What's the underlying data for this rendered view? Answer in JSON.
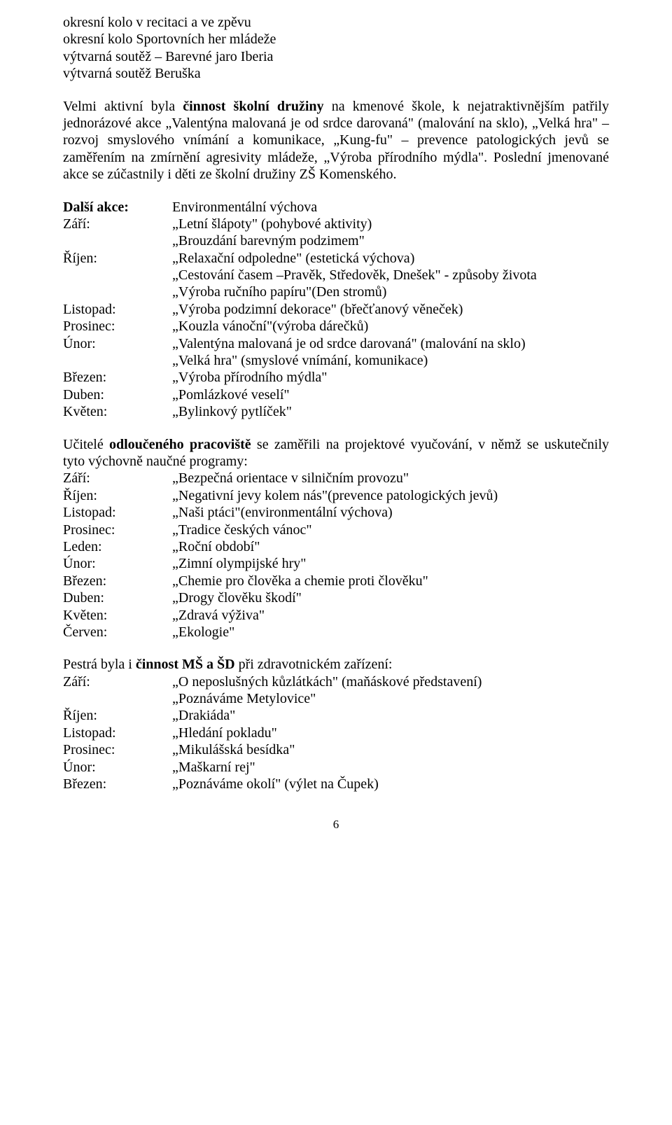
{
  "intro_lines": [
    "okresní kolo v recitaci a ve zpěvu",
    "okresní kolo Sportovních her mládeže",
    "výtvarná soutěž – Barevné jaro Iberia",
    "výtvarná soutěž Beruška"
  ],
  "paragraph1_prefix": "Velmi aktivní byla ",
  "paragraph1_bold": "činnost školní družiny",
  "paragraph1_rest": " na kmenové škole, k nejatraktivnějším patřily jednorázové akce „Valentýna malovaná je od srdce darovaná\" (malování na sklo), „Velká hra\" – rozvoj smyslového vnímání a komunikace, „Kung-fu\" – prevence patologických jevů se zaměřením na zmírnění agresivity mládeže, „Výroba přírodního mýdla\". Poslední jmenované akce se zúčastnily i děti ze školní družiny ZŠ Komenského.",
  "schedule1": [
    {
      "label_bold": "Další akce:",
      "lines": [
        "Environmentální výchova"
      ]
    },
    {
      "label": "Září:",
      "lines": [
        "„Letní šlápoty\" (pohybové aktivity)",
        "„Brouzdání barevným podzimem\""
      ]
    },
    {
      "label": "Říjen:",
      "lines": [
        "„Relaxační odpoledne\" (estetická výchova)",
        "„Cestování časem –Pravěk, Středověk, Dnešek\" - způsoby života",
        "„Výroba ručního papíru\"(Den stromů)"
      ]
    },
    {
      "label": "Listopad:",
      "lines": [
        "„Výroba podzimní dekorace\" (břečťanový věneček)"
      ]
    },
    {
      "label": "Prosinec:",
      "lines": [
        "„Kouzla vánoční\"(výroba dárečků)"
      ]
    },
    {
      "label": "Únor:",
      "lines": [
        "„Valentýna malovaná je od srdce darovaná\" (malování na sklo)",
        "„Velká hra\" (smyslové vnímání, komunikace)"
      ]
    },
    {
      "label": "Březen:",
      "lines": [
        "„Výroba přírodního mýdla\""
      ]
    },
    {
      "label": "Duben:",
      "lines": [
        "        „Pomlázkové veselí\""
      ]
    },
    {
      "label": "Květen:",
      "lines": [
        "„Bylinkový pytlíček\""
      ]
    }
  ],
  "paragraph2_prefix": "Učitelé ",
  "paragraph2_bold": "odloučeného pracoviště",
  "paragraph2_rest": " se  zaměřili  na  projektové  vyučování,  v němž  se uskutečnily tyto výchovně naučné programy:",
  "schedule2": [
    {
      "label": "Září:",
      "lines": [
        "„Bezpečná orientace v silničním provozu\""
      ]
    },
    {
      "label": "Říjen:",
      "lines": [
        "„Negativní jevy kolem nás\"(prevence patologických jevů)"
      ]
    },
    {
      "label": "Listopad:",
      "lines": [
        "„Naši ptáci\"(environmentální výchova)"
      ]
    },
    {
      "label": "Prosinec:",
      "lines": [
        "„Tradice českých vánoc\""
      ]
    },
    {
      "label": "Leden:",
      "lines": [
        "„Roční období\""
      ]
    },
    {
      "label": "Únor:",
      "lines": [
        "„Zimní olympijské hry\""
      ]
    },
    {
      "label": "Březen:",
      "lines": [
        "„Chemie pro člověka a chemie proti člověku\""
      ]
    },
    {
      "label": "Duben:",
      "lines": [
        "        „Drogy člověku škodí\""
      ]
    },
    {
      "label": "Květen:",
      "lines": [
        "„Zdravá výživa\""
      ]
    },
    {
      "label": "Červen:",
      "lines": [
        "„Ekologie\""
      ]
    }
  ],
  "paragraph3_prefix": "Pestrá byla i ",
  "paragraph3_bold": "činnost MŠ a ŠD",
  "paragraph3_rest": " při zdravotnickém zařízení:",
  "schedule3": [
    {
      "label": "Září:",
      "lines": [
        "„O neposlušných kůzlátkách\" (maňáskové představení)",
        "„Poznáváme Metylovice\""
      ]
    },
    {
      "label": "Říjen:",
      "lines": [
        "„Drakiáda\""
      ]
    },
    {
      "label": "Listopad:",
      "lines": [
        "„Hledání pokladu\""
      ]
    },
    {
      "label": "Prosinec:",
      "lines": [
        "„Mikulášská besídka\""
      ]
    },
    {
      "label": "Únor:",
      "lines": [
        "„Maškarní rej\""
      ]
    },
    {
      "label": "Březen:",
      "lines": [
        "„Poznáváme okolí\" (výlet na Čupek)"
      ]
    }
  ],
  "page_number": "6"
}
